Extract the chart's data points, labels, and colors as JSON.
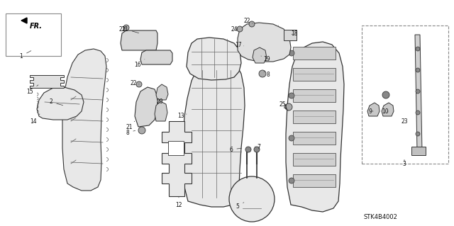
{
  "bg_color": "#ffffff",
  "diagram_code": "STK4B4002",
  "figsize": [
    6.4,
    3.19
  ],
  "dpi": 100,
  "line_color": "#333333",
  "fill_light": "#f0f0f0",
  "fill_mid": "#d8d8d8",
  "fill_dark": "#b8b8b8",
  "label_fs": 5.5,
  "label_color": "#111111"
}
